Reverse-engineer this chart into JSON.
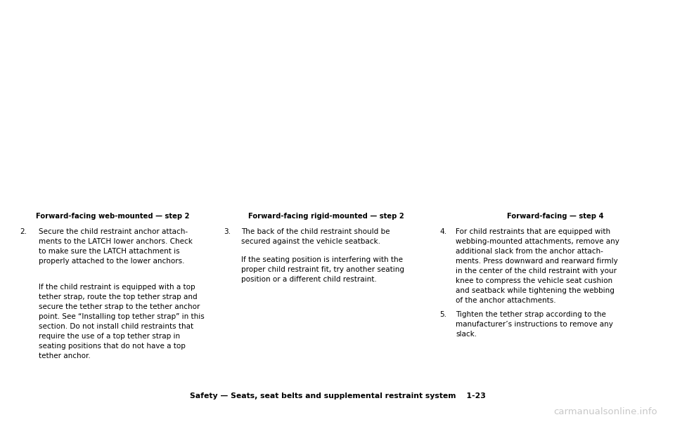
{
  "bg_color": "#ffffff",
  "page_width": 9.6,
  "page_height": 6.11,
  "dpi": 100,
  "footer_text": "Safety — Seats, seat belts and supplemental restraint system    1-23",
  "footer_fontsize": 7.8,
  "watermark_text": "carmanualsonline.info",
  "watermark_color": "#aaaaaa",
  "col1_title": "Forward-facing web-mounted — step 2",
  "col2_title": "Forward-facing rigid-mounted — step 2",
  "col3_title": "Forward-facing — step 4",
  "caption_fontsize": 7.2,
  "col1_num": "2.",
  "col1_para1": "Secure the child restraint anchor attach-\nments to the LATCH lower anchors. Check\nto make sure the LATCH attachment is\nproperly attached to the lower anchors.",
  "col1_para2": "If the child restraint is equipped with a top\ntether strap, route the top tether strap and\nsecure the tether strap to the tether anchor\npoint. See “Installing top tether strap” in this\nsection. Do not install child restraints that\nrequire the use of a top tether strap in\nseating positions that do not have a top\ntether anchor.",
  "col2_num": "3.",
  "col2_para1": "The back of the child restraint should be\nsecured against the vehicle seatback.",
  "col2_para2": "If the seating position is interfering with the\nproper child restraint fit, try another seating\nposition or a different child restraint.",
  "col3_num4": "4.",
  "col3_para1": "For child restraints that are equipped with\nwebbing-mounted attachments, remove any\nadditional slack from the anchor attach-\nments. Press downward and rearward firmly\nin the center of the child restraint with your\nknee to compress the vehicle seat cushion\nand seatback while tightening the webbing\nof the anchor attachments.",
  "col3_num5": "5.",
  "col3_para2": "Tighten the tether strap according to the\nmanufacturer’s instructions to remove any\nslack.",
  "body_fontsize": 7.5,
  "text_color": "#000000"
}
